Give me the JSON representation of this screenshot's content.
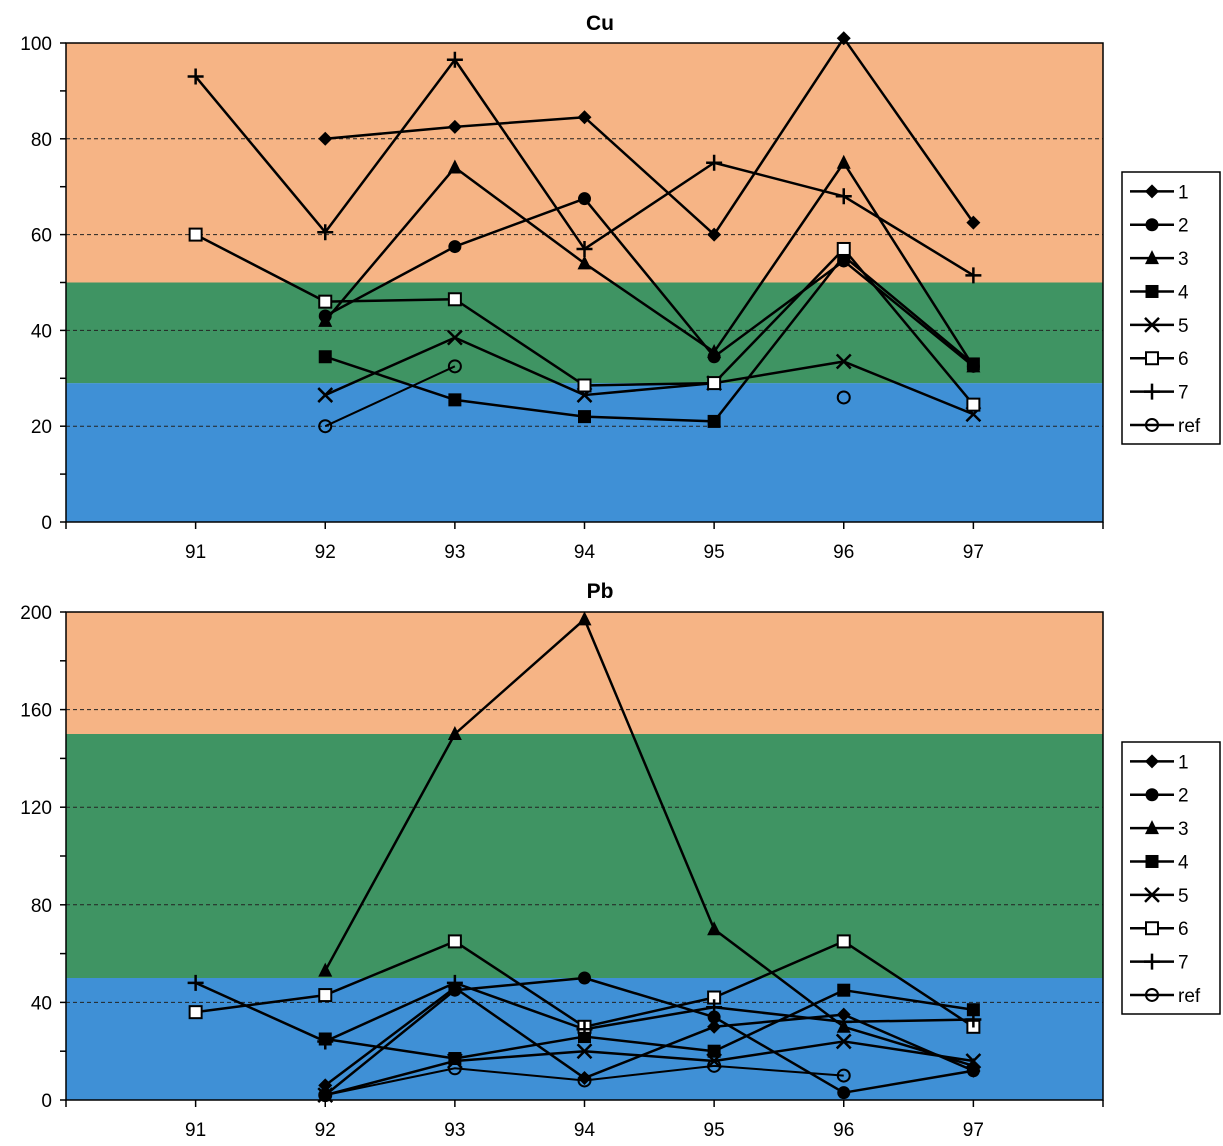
{
  "colors": {
    "band_high": "#f6b485",
    "band_mid": "#3f9463",
    "band_low": "#3f90d6",
    "line": "#000000"
  },
  "chart_data": [
    {
      "type": "line",
      "title": "Cu",
      "xlabel": "",
      "ylabel": "",
      "categories": [
        "91",
        "92",
        "93",
        "94",
        "95",
        "96",
        "97"
      ],
      "ylim": [
        0,
        100
      ],
      "yticks": [
        "0",
        "20",
        "40",
        "60",
        "80",
        "100"
      ],
      "grid": "dashed horizontal",
      "legend_position": "right",
      "bands": [
        {
          "from": 0,
          "to": 29,
          "color": "band_low"
        },
        {
          "from": 29,
          "to": 50,
          "color": "band_mid"
        },
        {
          "from": 50,
          "to": 100,
          "color": "band_high"
        }
      ],
      "series": [
        {
          "name": "1",
          "marker": "diamond",
          "values": [
            null,
            80,
            82.5,
            84.5,
            60,
            101,
            62.5
          ]
        },
        {
          "name": "2",
          "marker": "circle",
          "values": [
            null,
            43,
            57.5,
            67.5,
            34.5,
            54.5,
            32.5
          ]
        },
        {
          "name": "3",
          "marker": "triangle",
          "values": [
            null,
            42,
            74,
            54,
            35.5,
            75,
            32.5
          ]
        },
        {
          "name": "4",
          "marker": "square",
          "values": [
            null,
            34.5,
            25.5,
            22,
            21,
            55.5,
            33
          ]
        },
        {
          "name": "5",
          "marker": "x",
          "values": [
            null,
            26.5,
            38.5,
            26.5,
            29,
            33.5,
            22.5
          ]
        },
        {
          "name": "6",
          "marker": "open-square",
          "values": [
            60,
            46,
            46.5,
            28.5,
            29,
            57,
            24.5
          ]
        },
        {
          "name": "7",
          "marker": "plus",
          "values": [
            93,
            60.5,
            96.5,
            57,
            75,
            68,
            51.5
          ]
        },
        {
          "name": "ref",
          "marker": "open-circle",
          "values": [
            null,
            20,
            32.5,
            null,
            null,
            26,
            null
          ]
        }
      ]
    },
    {
      "type": "line",
      "title": "Pb",
      "xlabel": "",
      "ylabel": "",
      "categories": [
        "91",
        "92",
        "93",
        "94",
        "95",
        "96",
        "97"
      ],
      "ylim": [
        0,
        200
      ],
      "yticks": [
        "0",
        "40",
        "80",
        "120",
        "160",
        "200"
      ],
      "grid": "dashed horizontal",
      "legend_position": "right",
      "bands": [
        {
          "from": 0,
          "to": 50,
          "color": "band_low"
        },
        {
          "from": 50,
          "to": 150,
          "color": "band_mid"
        },
        {
          "from": 150,
          "to": 200,
          "color": "band_high"
        }
      ],
      "series": [
        {
          "name": "1",
          "marker": "diamond",
          "values": [
            null,
            6,
            46,
            9,
            30,
            35,
            12
          ]
        },
        {
          "name": "2",
          "marker": "circle",
          "values": [
            null,
            2,
            45,
            50,
            34,
            3,
            12
          ]
        },
        {
          "name": "3",
          "marker": "triangle",
          "values": [
            null,
            53,
            150,
            197,
            70,
            30,
            14
          ]
        },
        {
          "name": "4",
          "marker": "square",
          "values": [
            null,
            25,
            17,
            26,
            20,
            45,
            37
          ]
        },
        {
          "name": "5",
          "marker": "x",
          "values": [
            null,
            2,
            16,
            20,
            16,
            24,
            16
          ]
        },
        {
          "name": "6",
          "marker": "open-square",
          "values": [
            36,
            43,
            65,
            30,
            42,
            65,
            30
          ]
        },
        {
          "name": "7",
          "marker": "plus",
          "values": [
            48,
            24,
            48,
            29,
            38,
            32,
            33
          ]
        },
        {
          "name": "ref",
          "marker": "open-circle",
          "values": [
            null,
            2,
            13,
            8,
            14,
            10,
            null
          ]
        }
      ]
    }
  ]
}
